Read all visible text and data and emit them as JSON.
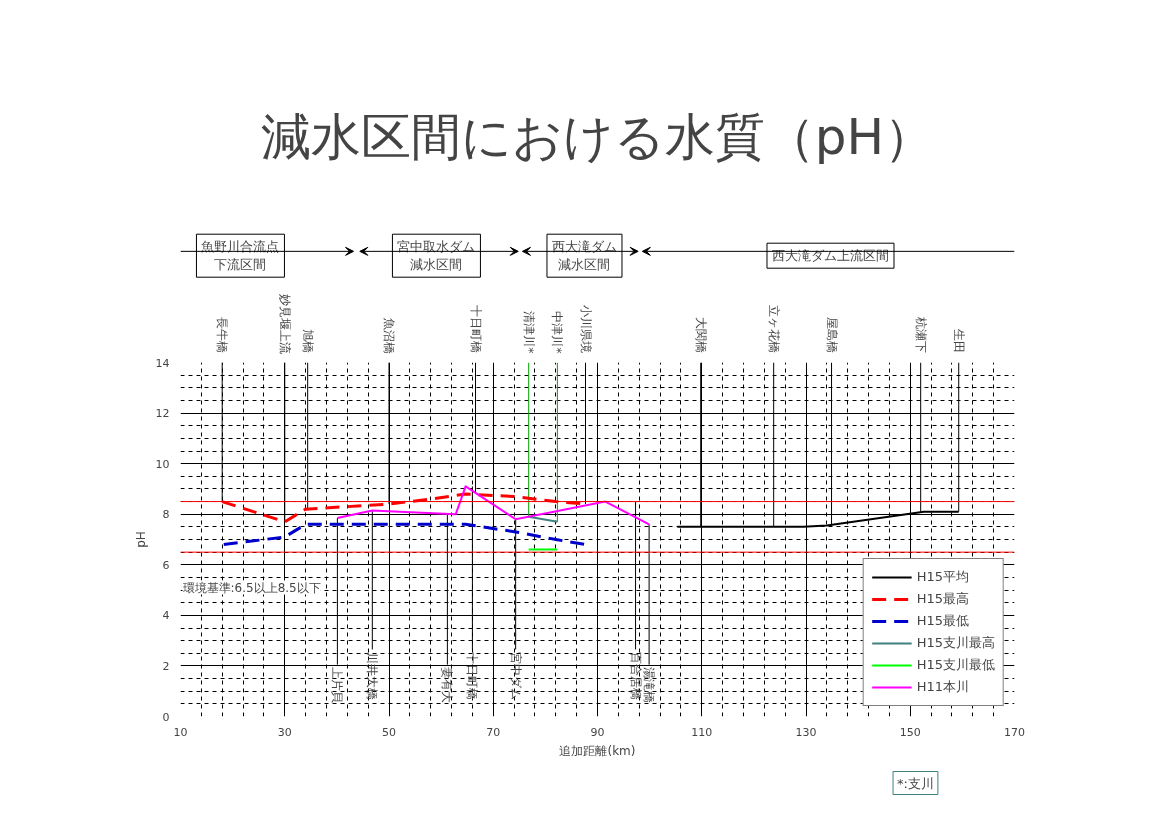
{
  "chart_data": {
    "type": "line",
    "title": "減水区間における水質（pH）",
    "xlabel": "追加距離(km)",
    "ylabel": "pH",
    "xlim": [
      10,
      170
    ],
    "xticks": [
      10,
      30,
      50,
      70,
      90,
      110,
      130,
      150,
      170
    ],
    "ylim": [
      0,
      14
    ],
    "yticks": [
      0,
      2,
      4,
      6,
      8,
      10,
      12,
      14
    ],
    "grid": true,
    "legend": "bottom right",
    "marker": "none",
    "ref_lines": [
      {
        "axis": "y",
        "value": 6.5,
        "color": "#ff0000"
      },
      {
        "axis": "y",
        "value": 8.5,
        "color": "#ff0000"
      }
    ],
    "series": [
      {
        "name": "H15平均",
        "color": "#000000",
        "line_style": "solid",
        "x": [
          105.3,
          129.5,
          134,
          152.6,
          159.3
        ],
        "values": [
          7.5,
          7.5,
          7.55,
          8.1,
          8.1
        ]
      },
      {
        "name": "H15最高",
        "color": "#ff0000",
        "line_style": "dashed",
        "x": [
          18,
          30,
          34,
          42,
          50,
          58,
          64.7,
          74,
          82,
          88
        ],
        "values": [
          8.5,
          7.7,
          8.2,
          8.3,
          8.4,
          8.6,
          8.8,
          8.7,
          8.5,
          8.4
        ]
      },
      {
        "name": "H15最低",
        "color": "#0000cc",
        "line_style": "dashed",
        "x": [
          18.3,
          30,
          34,
          64.7,
          74.3,
          82,
          87.7
        ],
        "values": [
          6.8,
          7.1,
          7.6,
          7.6,
          7.3,
          7.0,
          6.8
        ]
      },
      {
        "name": "H15支川最高",
        "color": "#408080",
        "line_style": "solid",
        "x": [
          76.8,
          82.3
        ],
        "values": [
          7.9,
          7.7
        ]
      },
      {
        "name": "H15支川最低",
        "color": "#00ff00",
        "line_style": "solid",
        "x": [
          76.8,
          82.3
        ],
        "values": [
          6.6,
          6.6
        ]
      },
      {
        "name": "H11本川",
        "color": "#ff00ff",
        "line_style": "solid",
        "x": [
          40.1,
          46.8,
          52,
          62.8,
          64.7,
          74.3,
          91.5,
          99.9
        ],
        "values": [
          7.85,
          8.15,
          8.1,
          8.0,
          9.1,
          7.8,
          8.5,
          7.6
        ]
      }
    ],
    "annotations": [
      {
        "text": "長牛橋",
        "x": 18,
        "y": 8.5
      },
      {
        "text": "妙見堰上流",
        "x": 30,
        "y": 7.7
      },
      {
        "text": "旭橋",
        "x": 34.4,
        "y": 8.2
      },
      {
        "text": "魚沼橋",
        "x": 50,
        "y": 8.4
      },
      {
        "text": "十日町橋",
        "x": 66.6,
        "y": 8.8
      },
      {
        "text": "清津川*",
        "x": 76.8,
        "y": 7.9
      },
      {
        "text": "中津川*",
        "x": 82.3,
        "y": 7.7
      },
      {
        "text": "小川県境",
        "x": 87.7,
        "y": 8.4
      },
      {
        "text": "大関橋",
        "x": 109.8,
        "y": 7.5
      },
      {
        "text": "立ヶ花橋",
        "x": 123.8,
        "y": 7.5
      },
      {
        "text": "屋島橋",
        "x": 134.9,
        "y": 7.55
      },
      {
        "text": "杭瀬下",
        "x": 152,
        "y": 8.1
      },
      {
        "text": "生田",
        "x": 159.3,
        "y": 8.1
      },
      {
        "text": "上片貝",
        "x": 40.1,
        "y": 7.85
      },
      {
        "text": "川井大橋",
        "x": 46.8,
        "y": 8.15
      },
      {
        "text": "妻有大",
        "x": 61.2,
        "y": 8.0
      },
      {
        "text": "十日町橋",
        "x": 66,
        "y": 9.1
      },
      {
        "text": "宮中ダム",
        "x": 74.3,
        "y": 7.8
      },
      {
        "text": "百合居橋",
        "x": 97.3,
        "y": 8.5
      },
      {
        "text": "湯滝橋",
        "x": 99.9,
        "y": 7.6
      },
      "魚野川合流点下流区間",
      "宮中取水ダム減水区間",
      "西大滝ダム減水区間",
      "西大滝ダム上流区間",
      "環境基準:6.5以上8.5以下",
      "*:支川"
    ]
  }
}
